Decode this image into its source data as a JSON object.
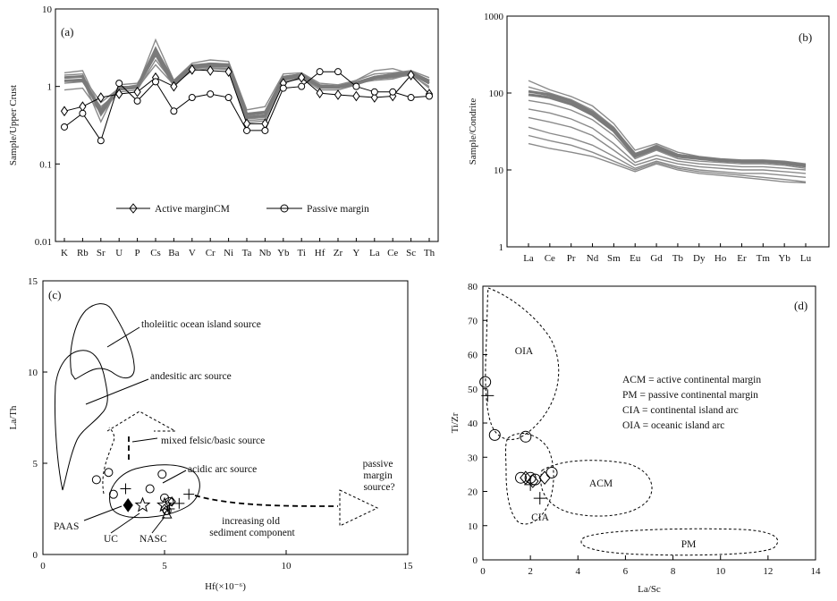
{
  "chart_data": [
    {
      "panel": "(a)",
      "type": "line",
      "ylabel": "Sample/Upper Crust",
      "yscale": "log",
      "ylim": [
        0.01,
        10
      ],
      "yticks": [
        "0.01",
        "0.1",
        "1",
        "10"
      ],
      "categories": [
        "K",
        "Rb",
        "Sr",
        "U",
        "P",
        "Cs",
        "Ba",
        "V",
        "Cr",
        "Ni",
        "Ta",
        "Nb",
        "Yb",
        "Ti",
        "Hf",
        "Zr",
        "Y",
        "La",
        "Ce",
        "Sc",
        "Th"
      ],
      "legend": [
        "Active marginCM",
        "Passive margin"
      ],
      "legend_placement": "bottom-center",
      "series": [
        {
          "name": "Active marginCM",
          "marker": "diamond",
          "values": [
            0.48,
            0.55,
            0.72,
            0.8,
            0.85,
            1.3,
            1.0,
            1.65,
            1.6,
            1.55,
            0.33,
            0.33,
            1.1,
            1.3,
            0.82,
            0.78,
            0.75,
            0.72,
            0.75,
            1.4,
            0.8
          ]
        },
        {
          "name": "Passive margin",
          "marker": "circle",
          "values": [
            0.3,
            0.45,
            0.2,
            1.1,
            0.65,
            1.15,
            0.48,
            0.72,
            0.8,
            0.72,
            0.27,
            0.27,
            0.95,
            1.0,
            1.55,
            1.55,
            1.0,
            0.85,
            0.85,
            0.72,
            0.75
          ]
        }
      ],
      "gray_series": [
        [
          1.5,
          1.6,
          0.5,
          1.0,
          1.0,
          4.0,
          1.2,
          2.0,
          2.2,
          2.1,
          0.5,
          0.55,
          1.45,
          1.5,
          1.1,
          1.05,
          1.2,
          1.45,
          1.5,
          1.6,
          1.3
        ],
        [
          1.4,
          1.45,
          0.42,
          0.9,
          0.95,
          3.2,
          1.1,
          1.85,
          2.0,
          1.95,
          0.45,
          0.48,
          1.35,
          1.45,
          1.0,
          1.0,
          1.15,
          1.3,
          1.4,
          1.5,
          1.2
        ],
        [
          1.3,
          1.35,
          0.62,
          0.95,
          1.05,
          2.8,
          1.15,
          1.9,
          1.9,
          1.9,
          0.42,
          0.45,
          1.3,
          1.4,
          1.05,
          1.0,
          1.1,
          1.35,
          1.45,
          1.55,
          1.15
        ],
        [
          1.2,
          1.25,
          0.35,
          1.05,
          1.1,
          2.5,
          1.0,
          1.75,
          1.85,
          1.8,
          0.38,
          0.4,
          1.25,
          1.35,
          0.95,
          0.95,
          1.2,
          1.6,
          1.7,
          1.45,
          1.1
        ],
        [
          1.1,
          1.15,
          0.55,
          0.85,
          0.9,
          2.2,
          1.1,
          1.7,
          1.75,
          1.7,
          0.36,
          0.38,
          1.2,
          1.3,
          0.9,
          0.9,
          1.05,
          1.25,
          1.3,
          1.4,
          1.0
        ],
        [
          0.9,
          0.95,
          0.45,
          0.9,
          0.95,
          1.9,
          1.05,
          1.6,
          1.7,
          1.65,
          0.34,
          0.36,
          1.15,
          1.25,
          1.0,
          1.0,
          1.1,
          1.2,
          1.25,
          1.45,
          0.95
        ]
      ],
      "thick_series": [
        [
          1.3,
          1.35,
          0.45,
          0.95,
          1.0,
          3.0,
          1.15,
          1.85,
          1.95,
          1.9,
          0.44,
          0.46,
          1.32,
          1.42,
          1.02,
          1.0,
          1.12,
          1.32,
          1.42,
          1.52,
          1.18
        ],
        [
          1.18,
          1.2,
          0.5,
          0.92,
          0.98,
          2.6,
          1.08,
          1.78,
          1.85,
          1.82,
          0.4,
          0.42,
          1.26,
          1.36,
          0.98,
          0.97,
          1.08,
          1.28,
          1.35,
          1.47,
          1.1
        ]
      ]
    },
    {
      "panel": "(b)",
      "type": "line",
      "ylabel": "Sample/Condrite",
      "yscale": "log",
      "ylim": [
        1,
        1000
      ],
      "yticks": [
        "1",
        "10",
        "100",
        "1000"
      ],
      "categories": [
        "La",
        "Ce",
        "Pr",
        "Nd",
        "Sm",
        "Eu",
        "Gd",
        "Tb",
        "Dy",
        "Ho",
        "Er",
        "Tm",
        "Yb",
        "Lu"
      ],
      "gray_series": [
        [
          145,
          110,
          90,
          68,
          40,
          18,
          22,
          17,
          15,
          14,
          13.5,
          13.5,
          13,
          12
        ],
        [
          120,
          100,
          82,
          60,
          36,
          16,
          21,
          16,
          14.5,
          13.5,
          13,
          13,
          12.5,
          11.5
        ],
        [
          95,
          85,
          70,
          52,
          32,
          15,
          19,
          15,
          14,
          13,
          12.5,
          12.5,
          12,
          11
        ],
        [
          80,
          72,
          60,
          45,
          28,
          14,
          18,
          14,
          13,
          12.5,
          12,
          12,
          11.5,
          10.5
        ],
        [
          62,
          55,
          46,
          35,
          22,
          12.5,
          15.5,
          13,
          12,
          11.5,
          11,
          11,
          10.5,
          10
        ],
        [
          48,
          42,
          36,
          28,
          18,
          11.5,
          14,
          12,
          11,
          10.5,
          10,
          10,
          9.5,
          9
        ],
        [
          36,
          30,
          26,
          21,
          15,
          10.5,
          13,
          11,
          10,
          9.5,
          9,
          9,
          8.5,
          8
        ],
        [
          28,
          24,
          21,
          17,
          13,
          10,
          12.5,
          10.5,
          9.5,
          9,
          8.5,
          8,
          7.5,
          7
        ],
        [
          22,
          19,
          17,
          15,
          12,
          9.5,
          12,
          10,
          9,
          8.5,
          8,
          7.5,
          7,
          6.8
        ]
      ],
      "thick_series": [
        [
          105,
          95,
          78,
          56,
          34,
          16,
          20,
          15.5,
          14.5,
          13.5,
          13,
          13,
          12.5,
          11.5
        ],
        [
          95,
          88,
          72,
          52,
          32,
          15,
          19,
          15,
          14,
          13.2,
          12.8,
          12.8,
          12.2,
          11.2
        ]
      ]
    },
    {
      "panel": "(c)",
      "type": "scatter",
      "xlabel": "Hf(×10⁻⁶)",
      "ylabel": "La/Th",
      "xlim": [
        0,
        15
      ],
      "ylim": [
        0,
        15
      ],
      "xticks": [
        "0",
        "5",
        "10",
        "15"
      ],
      "yticks": [
        "0",
        "5",
        "10",
        "15"
      ],
      "annotations": [
        "tholeiitic ocean island source",
        "andesitic arc source",
        "mixed felsic/basic source",
        "acidic arc source",
        "passive margin source?",
        "increasing old sediment component",
        "PAAS",
        "UC",
        "NASC"
      ],
      "points_circle": [
        [
          2.2,
          4.1
        ],
        [
          2.7,
          4.5
        ],
        [
          2.9,
          3.3
        ],
        [
          4.4,
          3.6
        ],
        [
          4.9,
          4.4
        ],
        [
          5.0,
          3.1
        ],
        [
          5.2,
          2.9
        ],
        [
          5.1,
          2.4
        ]
      ],
      "points_plus": [
        [
          3.4,
          3.6
        ],
        [
          6.0,
          3.3
        ],
        [
          5.6,
          2.8
        ],
        [
          5.2,
          2.5
        ]
      ],
      "points_triangle": [
        [
          5.1,
          2.2
        ]
      ],
      "points_diamond_filled": [
        [
          3.5,
          2.7
        ]
      ],
      "points_diamond_open": [
        [
          5.0,
          2.5
        ],
        [
          5.3,
          2.9
        ]
      ],
      "points_star": [
        [
          4.1,
          2.7
        ],
        [
          5.0,
          2.7
        ]
      ]
    },
    {
      "panel": "(d)",
      "type": "scatter",
      "xlabel": "La/Sc",
      "ylabel": "Ti/Zr",
      "xlim": [
        0,
        14
      ],
      "ylim": [
        0,
        80
      ],
      "xticks": [
        "0",
        "2",
        "4",
        "6",
        "8",
        "10",
        "12",
        "14"
      ],
      "yticks": [
        "0",
        "10",
        "20",
        "30",
        "40",
        "50",
        "60",
        "70",
        "80"
      ],
      "fields": [
        "OIA",
        "ACM",
        "CIA",
        "PM"
      ],
      "legend_text": [
        "ACM = active continental margin",
        "PM = passive continental margin",
        "CIA = continental island arc",
        "OIA = oceanic island arc"
      ],
      "points_circle": [
        [
          0.1,
          52
        ],
        [
          0.5,
          36.5
        ],
        [
          1.8,
          36
        ],
        [
          1.6,
          24
        ],
        [
          2.0,
          24
        ],
        [
          2.2,
          23.5
        ],
        [
          2.9,
          25.5
        ]
      ],
      "points_plus": [
        [
          0.2,
          48
        ],
        [
          2.0,
          22
        ],
        [
          2.4,
          18
        ]
      ],
      "points_diamond_open": [
        [
          1.8,
          24
        ],
        [
          2.1,
          23
        ],
        [
          2.6,
          24
        ]
      ]
    }
  ]
}
